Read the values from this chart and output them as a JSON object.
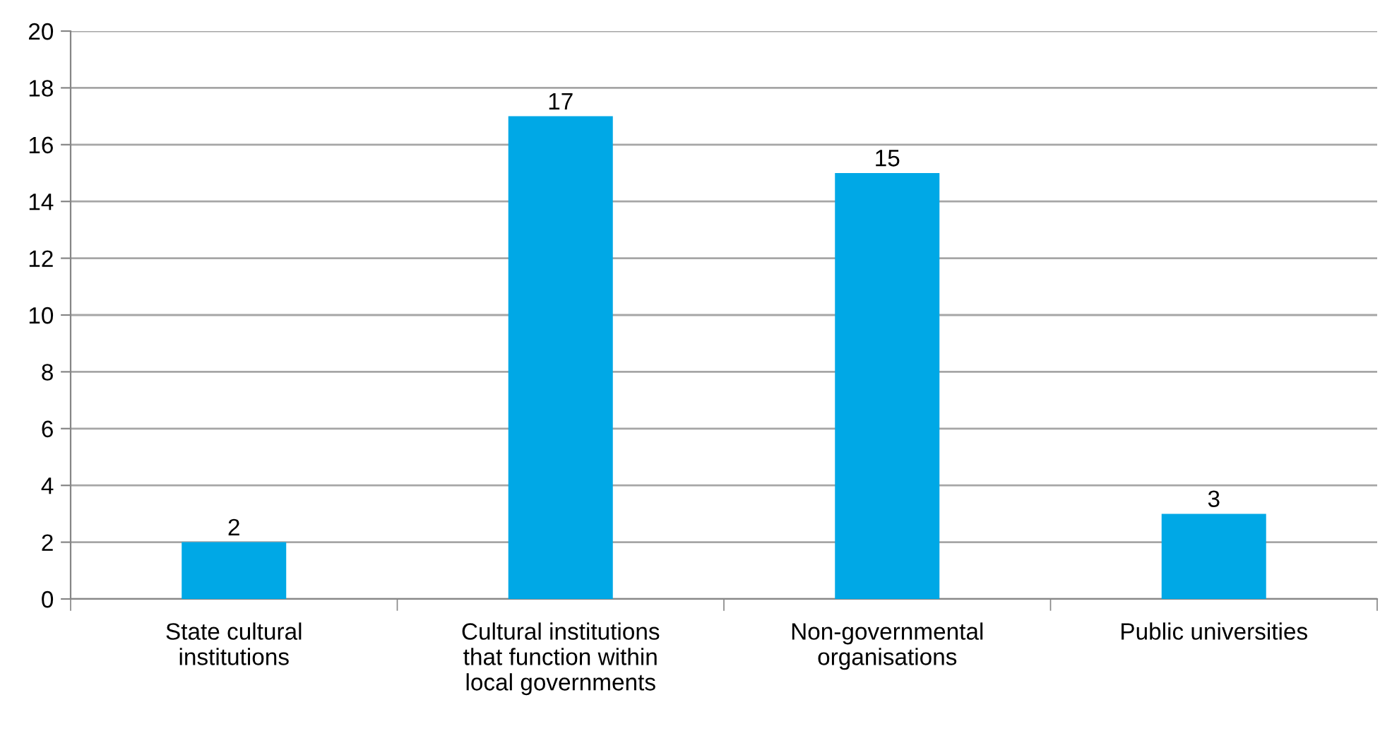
{
  "chart_data": {
    "type": "bar",
    "categories": [
      "State cultural\ninstitutions",
      "Cultural institutions\nthat function within\nlocal governments",
      "Non-governmental\norganisations",
      "Public universities"
    ],
    "values": [
      2,
      17,
      15,
      3
    ],
    "color": "#00a8e6",
    "ylim": [
      0,
      20
    ],
    "yticks": [
      0,
      2,
      4,
      6,
      8,
      10,
      12,
      14,
      16,
      18,
      20
    ],
    "grid": "y",
    "data_labels": true
  }
}
